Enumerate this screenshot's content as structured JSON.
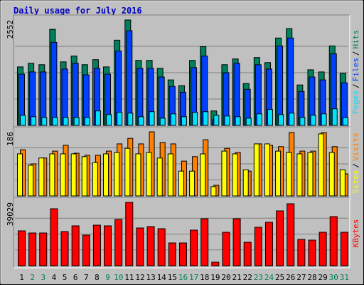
{
  "chart_data": {
    "type": "bar",
    "title": "Daily usage for July 2016",
    "categories": [
      1,
      2,
      3,
      4,
      5,
      6,
      7,
      8,
      9,
      10,
      11,
      12,
      13,
      14,
      15,
      16,
      17,
      18,
      19,
      20,
      21,
      22,
      23,
      24,
      25,
      26,
      27,
      28,
      29,
      30,
      31
    ],
    "category_colors": [
      "#000000",
      "#00805c",
      "#00805c",
      "#000000",
      "#000000",
      "#000000",
      "#000000",
      "#000000",
      "#00805c",
      "#00805c",
      "#000000",
      "#000000",
      "#000000",
      "#000000",
      "#000000",
      "#00805c",
      "#00805c",
      "#000000",
      "#000000",
      "#000000",
      "#000000",
      "#000000",
      "#00805c",
      "#00805c",
      "#000000",
      "#000000",
      "#000000",
      "#000000",
      "#000000",
      "#00805c",
      "#00805c"
    ],
    "separator": "/",
    "panels": [
      {
        "ylim": [
          0,
          2552
        ],
        "yticks": [
          2552
        ],
        "series": [
          {
            "name": "Pages",
            "color": "#00e0ff",
            "values": [
              245,
              210,
              192,
              192,
              192,
              192,
              192,
              350,
              262,
              315,
              297,
              210,
              332,
              175,
              280,
              210,
              315,
              332,
              245,
              227,
              210,
              175,
              280,
              385,
              262,
              297,
              192,
              245,
              280,
              402,
              192
            ]
          },
          {
            "name": "Files",
            "color": "#0040ff",
            "values": [
              1241,
              1294,
              1294,
              2010,
              1364,
              1503,
              1224,
              1381,
              1241,
              1800,
              2290,
              1381,
              1381,
              1171,
              944,
              804,
              1398,
              1678,
              140,
              1276,
              1503,
              874,
              1468,
              1364,
              1923,
              2115,
              822,
              1171,
              1101,
              1731,
              1031
            ]
          },
          {
            "name": "Hits",
            "color": "#00805c",
            "values": [
              1416,
              1504,
              1469,
              2325,
              1538,
              1678,
              1469,
              1591,
              1416,
              2063,
              2552,
              1573,
              1573,
              1381,
              1101,
              962,
              1573,
              1906,
              350,
              1469,
              1608,
              1014,
              1643,
              1521,
              2115,
              2343,
              979,
              1346,
              1294,
              1923,
              1259
            ]
          }
        ]
      },
      {
        "ylim": [
          0,
          186
        ],
        "yticks": [
          186
        ],
        "series": [
          {
            "name": "Sites",
            "color": "#ffff00",
            "values": [
              122,
              89,
              110,
              122,
              122,
              122,
              114,
              97,
              122,
              126,
              138,
              122,
              126,
              110,
              122,
              72,
              72,
              122,
              27,
              130,
              122,
              76,
              151,
              151,
              130,
              126,
              122,
              126,
              180,
              126,
              76
            ]
          },
          {
            "name": "Visits",
            "color": "#ff8000",
            "values": [
              134,
              93,
              110,
              130,
              147,
              124,
              118,
              118,
              130,
              151,
              167,
              151,
              186,
              155,
              151,
              101,
              114,
              163,
              31,
              138,
              126,
              72,
              151,
              147,
              143,
              184,
              130,
              130,
              184,
              143,
              64
            ]
          }
        ]
      },
      {
        "ylim": [
          0,
          39029
        ],
        "yticks": [
          39029
        ],
        "series": [
          {
            "name": "KBytes",
            "color": "#ff0000",
            "values": [
              21488,
              20172,
              20172,
              35083,
              21049,
              24559,
              18857,
              24996,
              24559,
              28505,
              39029,
              23242,
              24119,
              22804,
              14033,
              14033,
              21927,
              28944,
              2193,
              20611,
              28944,
              14472,
              23681,
              26750,
              33767,
              38152,
              16225,
              15787,
              20611,
              30258,
              20611
            ]
          }
        ]
      }
    ]
  }
}
